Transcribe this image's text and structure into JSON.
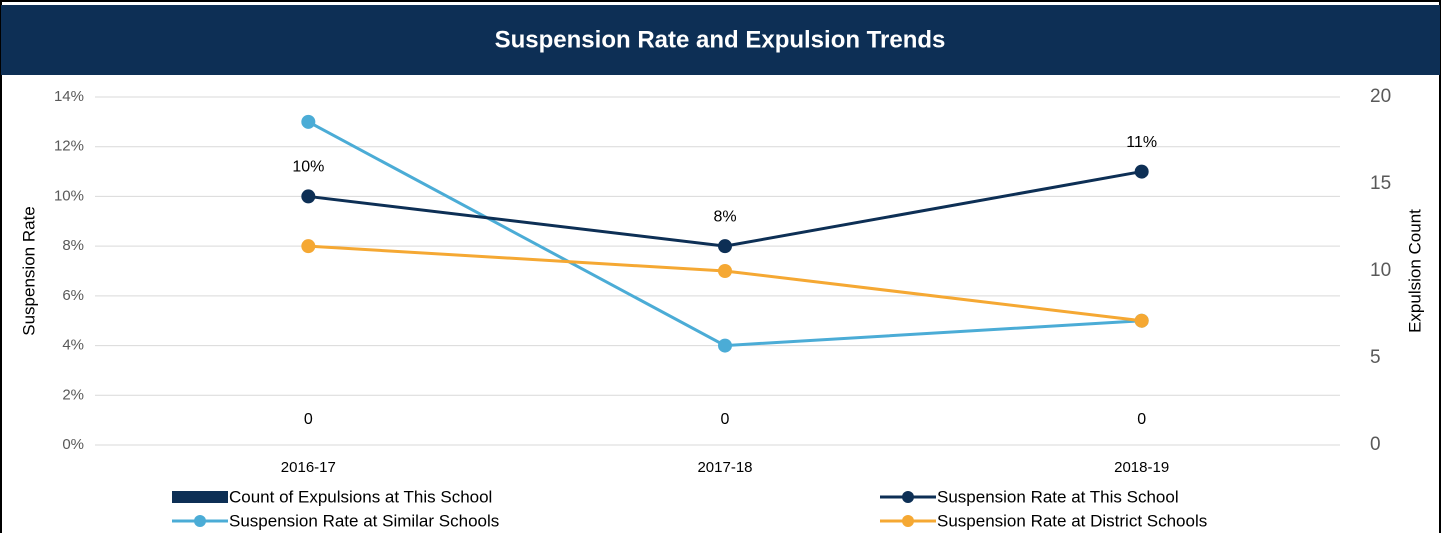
{
  "chart_data": {
    "type": "line",
    "title": "Suspension Rate and Expulsion Trends",
    "y_label": "Suspension Rate",
    "y2_label": "Expulsion Count",
    "categories": [
      "2016-17",
      "2017-18",
      "2018-19"
    ],
    "ylim": [
      0,
      14
    ],
    "yticks": [
      {
        "value": 0,
        "label": "0%"
      },
      {
        "value": 2,
        "label": "2%"
      },
      {
        "value": 4,
        "label": "4%"
      },
      {
        "value": 6,
        "label": "6%"
      },
      {
        "value": 8,
        "label": "8%"
      },
      {
        "value": 10,
        "label": "10%"
      },
      {
        "value": 12,
        "label": "12%"
      },
      {
        "value": 14,
        "label": "14%"
      }
    ],
    "y2lim": [
      0,
      20
    ],
    "y2ticks": [
      0,
      5,
      10,
      15,
      20
    ],
    "grid": true,
    "series": [
      {
        "name": "Count of Expulsions at This School",
        "type": "bar",
        "axis": "y2",
        "color": "#0d2f55",
        "values": [
          0,
          0,
          0
        ]
      },
      {
        "name": "Suspension Rate at This School",
        "type": "line",
        "color": "#0d2f55",
        "values": [
          10,
          8,
          11
        ],
        "value_labels": [
          "10%",
          "8%",
          "11%"
        ]
      },
      {
        "name": "Suspension Rate at Similar Schools",
        "type": "line",
        "color": "#4bacd6",
        "values": [
          13,
          4,
          5
        ]
      },
      {
        "name": "Suspension Rate at District Schools",
        "type": "line",
        "color": "#f5a833",
        "values": [
          8,
          7,
          5
        ]
      }
    ]
  }
}
